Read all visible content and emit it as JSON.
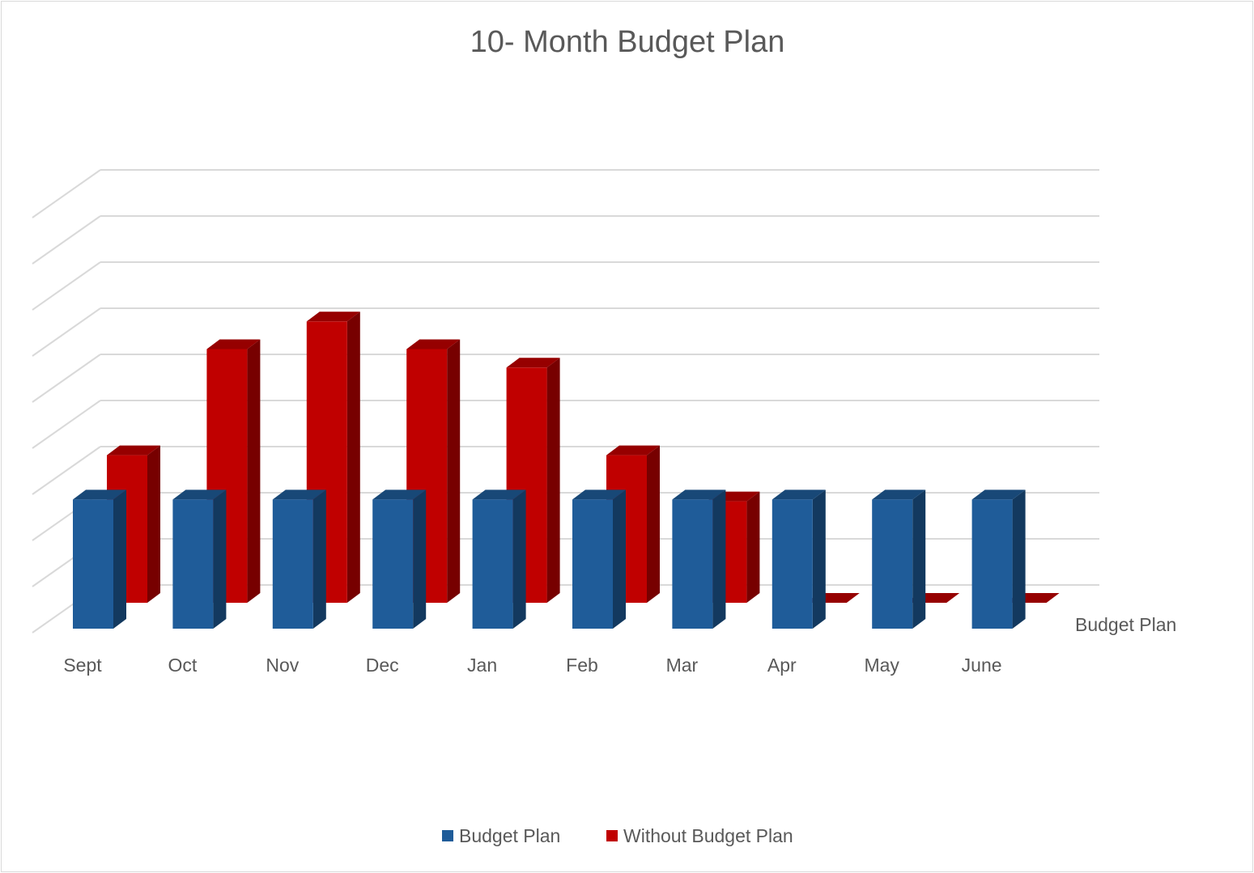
{
  "chart_data": {
    "type": "bar",
    "title": "10- Month Budget Plan",
    "categories": [
      "Sept",
      "Oct",
      "Nov",
      "Dec",
      "Jan",
      "Feb",
      "Mar",
      "Apr",
      "May",
      "June"
    ],
    "series": [
      {
        "name": "Budget Plan",
        "values": [
          2.8,
          2.8,
          2.8,
          2.8,
          2.8,
          2.8,
          2.8,
          2.8,
          2.8,
          2.8
        ],
        "color": "#1f5c99"
      },
      {
        "name": "Without Budget Plan",
        "values": [
          3.2,
          5.5,
          6.1,
          5.5,
          5.1,
          3.2,
          2.2,
          0,
          0,
          0
        ],
        "color": "#c00000"
      }
    ],
    "depth_axis_labels": [
      "Budget Plan"
    ],
    "ylim": [
      0,
      9
    ],
    "grid": true,
    "legend_position": "bottom",
    "style": "3d-column"
  }
}
